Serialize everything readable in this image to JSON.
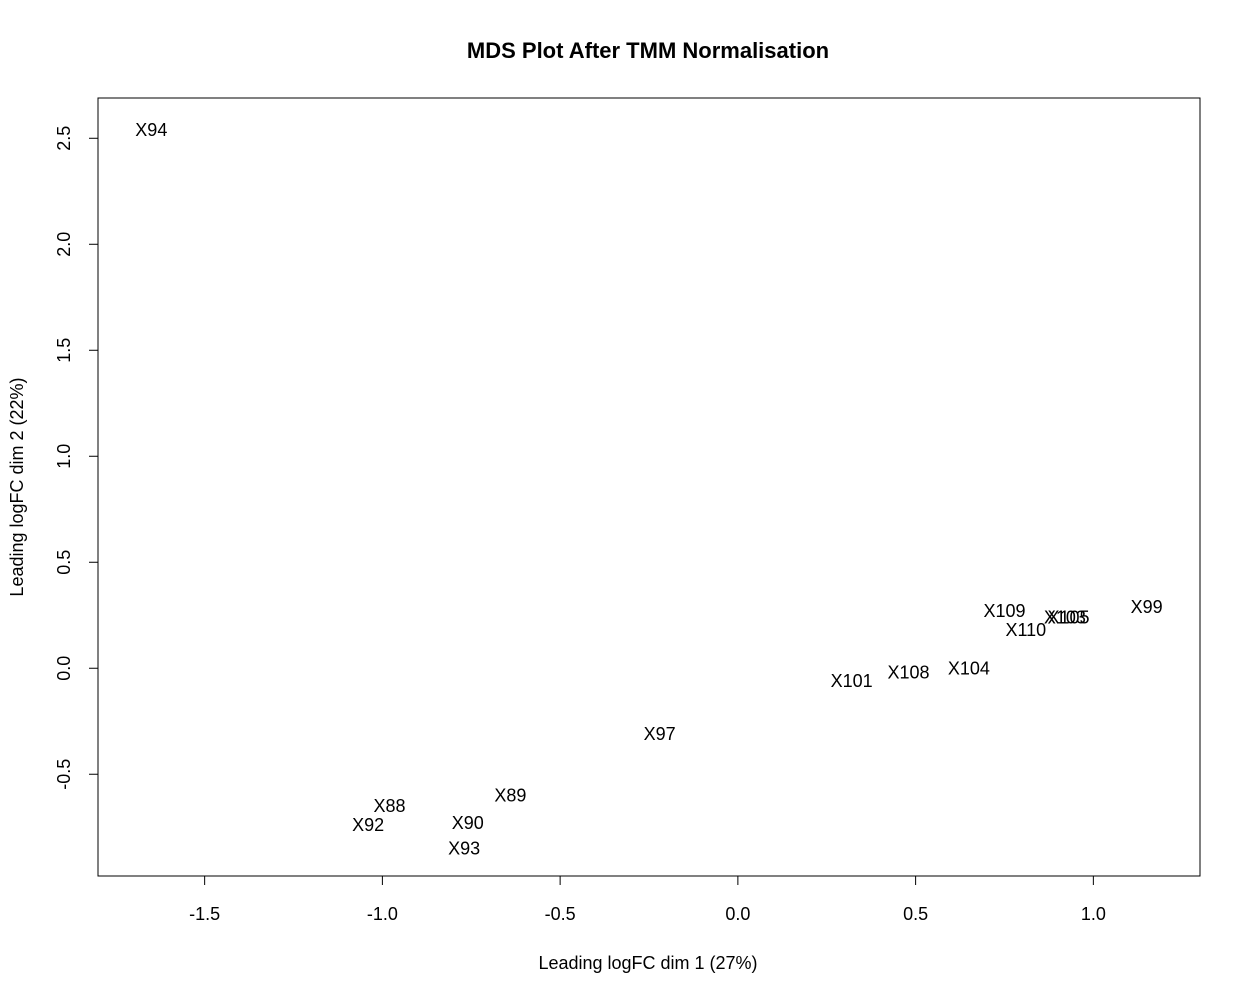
{
  "chart_data": {
    "type": "scatter",
    "title": "MDS Plot After TMM Normalisation",
    "xlabel": "Leading logFC dim 1 (27%)",
    "ylabel": "Leading logFC dim 2 (22%)",
    "xlim": [
      -1.8,
      1.3
    ],
    "ylim": [
      -0.98,
      2.69
    ],
    "xticks": [
      -1.5,
      -1.0,
      -0.5,
      0.0,
      0.5,
      1.0
    ],
    "xtick_labels": [
      "-1.5",
      "-1.0",
      "-0.5",
      "0.0",
      "0.5",
      "1.0"
    ],
    "yticks": [
      -0.5,
      0.0,
      0.5,
      1.0,
      1.5,
      2.0,
      2.5
    ],
    "ytick_labels": [
      "-0.5",
      "0.0",
      "0.5",
      "1.0",
      "1.5",
      "2.0",
      "2.5"
    ],
    "grid": false,
    "points": [
      {
        "label": "X94",
        "x": -1.65,
        "y": 2.54
      },
      {
        "label": "X99",
        "x": 1.15,
        "y": 0.29
      },
      {
        "label": "X109",
        "x": 0.75,
        "y": 0.27
      },
      {
        "label": "X103",
        "x": 0.92,
        "y": 0.24
      },
      {
        "label": "X105",
        "x": 0.93,
        "y": 0.24
      },
      {
        "label": "X110",
        "x": 0.81,
        "y": 0.18
      },
      {
        "label": "X104",
        "x": 0.65,
        "y": 0.0
      },
      {
        "label": "X108",
        "x": 0.48,
        "y": -0.02
      },
      {
        "label": "X101",
        "x": 0.32,
        "y": -0.06
      },
      {
        "label": "X97",
        "x": -0.22,
        "y": -0.31
      },
      {
        "label": "X89",
        "x": -0.64,
        "y": -0.6
      },
      {
        "label": "X88",
        "x": -0.98,
        "y": -0.65
      },
      {
        "label": "X90",
        "x": -0.76,
        "y": -0.73
      },
      {
        "label": "X92",
        "x": -1.04,
        "y": -0.74
      },
      {
        "label": "X93",
        "x": -0.77,
        "y": -0.85
      }
    ]
  }
}
